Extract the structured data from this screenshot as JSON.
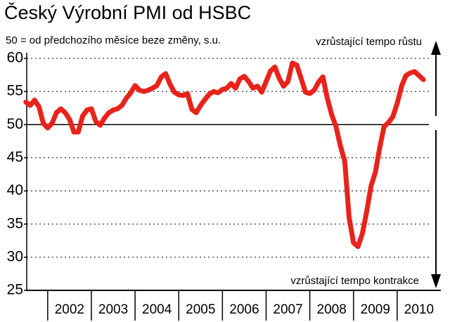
{
  "chart_data": {
    "type": "line",
    "title": "Český Výrobní PMI od HSBC",
    "subtitle": "50 = od předchozího měsíce beze změny, s.u.",
    "annotations": [
      "vzrůstající tempo růstu",
      "vzrůstající tempo kontrakce"
    ],
    "x": [
      2001.5,
      2001.6,
      2001.7,
      2001.8,
      2001.9,
      2002.0,
      2002.1,
      2002.2,
      2002.3,
      2002.4,
      2002.5,
      2002.6,
      2002.7,
      2002.8,
      2002.9,
      2003.0,
      2003.1,
      2003.2,
      2003.3,
      2003.4,
      2003.5,
      2003.6,
      2003.7,
      2003.8,
      2003.9,
      2004.0,
      2004.1,
      2004.2,
      2004.3,
      2004.4,
      2004.5,
      2004.6,
      2004.7,
      2004.8,
      2004.9,
      2005.0,
      2005.1,
      2005.2,
      2005.3,
      2005.4,
      2005.5,
      2005.6,
      2005.7,
      2005.8,
      2005.9,
      2006.0,
      2006.1,
      2006.2,
      2006.3,
      2006.4,
      2006.5,
      2006.6,
      2006.7,
      2006.8,
      2006.9,
      2007.0,
      2007.1,
      2007.2,
      2007.3,
      2007.4,
      2007.5,
      2007.6,
      2007.7,
      2007.8,
      2007.9,
      2008.0,
      2008.1,
      2008.2,
      2008.3,
      2008.4,
      2008.5,
      2008.6,
      2008.7,
      2008.8,
      2008.9,
      2009.0,
      2009.1,
      2009.2,
      2009.3,
      2009.4,
      2009.5,
      2009.6,
      2009.7,
      2009.8,
      2009.9,
      2010.0,
      2010.1,
      2010.2,
      2010.3,
      2010.4,
      2010.5,
      2010.6
    ],
    "series": [
      {
        "name": "PMI",
        "color": "#e8231b",
        "values": [
          53.4,
          52.9,
          53.7,
          52.7,
          50.2,
          49.5,
          50.2,
          51.8,
          52.4,
          51.8,
          50.8,
          48.9,
          48.9,
          51.3,
          52.2,
          52.4,
          50.5,
          49.9,
          51,
          51.8,
          52.2,
          52.4,
          52.9,
          54,
          54.8,
          55.9,
          55.2,
          55,
          55.2,
          55.5,
          55.9,
          57.2,
          57.7,
          56.1,
          54.9,
          54.5,
          54.4,
          54.7,
          52.3,
          51.8,
          52.9,
          53.8,
          54.6,
          55,
          54.8,
          55.3,
          55.5,
          56.2,
          55.5,
          56.9,
          57.3,
          56.5,
          55.5,
          55.8,
          54.9,
          56.5,
          58.1,
          58.7,
          57,
          55.8,
          56.5,
          59.3,
          59,
          57,
          54.9,
          54.7,
          55.2,
          56.4,
          57.2,
          54,
          51.5,
          49.7,
          46.8,
          44.5,
          36,
          32.2,
          31.6,
          33.5,
          36.8,
          40.7,
          42.8,
          46.5,
          49.7,
          50.3,
          51.2,
          53.2,
          55.8,
          57.4,
          57.8,
          58,
          57.4,
          56.8
        ]
      }
    ],
    "xlim": [
      2001.52,
      2011.0
    ],
    "xticks": [
      {
        "value": 2002.5,
        "label": "2002"
      },
      {
        "value": 2003.5,
        "label": "2003"
      },
      {
        "value": 2004.5,
        "label": "2004"
      },
      {
        "value": 2005.5,
        "label": "2005"
      },
      {
        "value": 2006.5,
        "label": "2006"
      },
      {
        "value": 2007.5,
        "label": "2007"
      },
      {
        "value": 2008.5,
        "label": "2008"
      },
      {
        "value": 2009.5,
        "label": "2009"
      },
      {
        "value": 2010.5,
        "label": "2010"
      }
    ],
    "ylim": [
      25,
      60
    ],
    "yticks": [
      25,
      30,
      35,
      40,
      45,
      50,
      55,
      60
    ],
    "reference_line": 50,
    "grid": true
  }
}
